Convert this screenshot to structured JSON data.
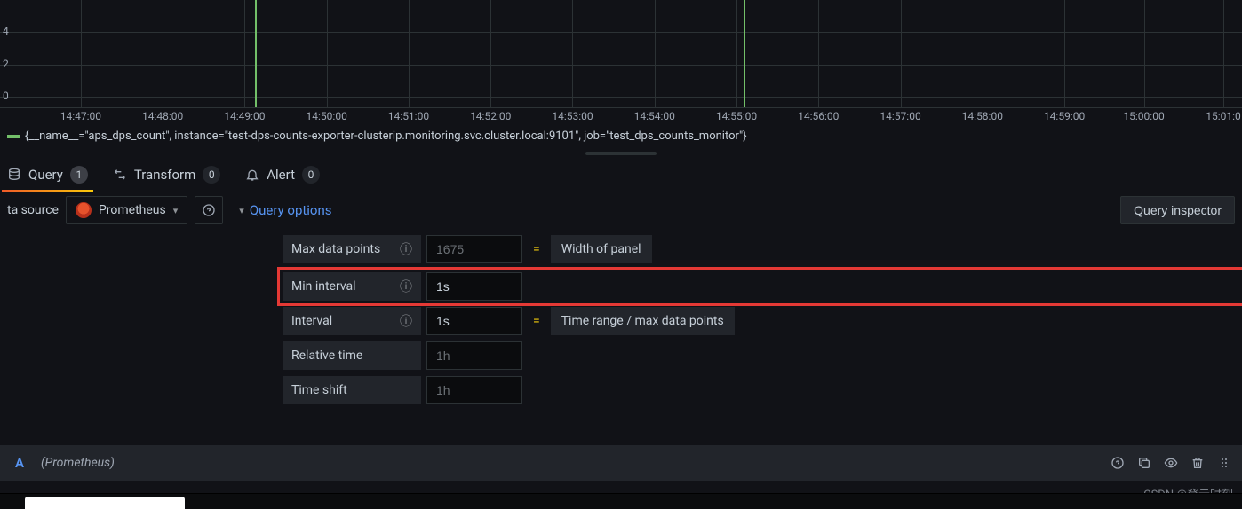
{
  "chart": {
    "type": "line",
    "series_color": "#73bf69",
    "grid_color": "#2c3235",
    "background_color": "#111217",
    "y_ticks": [
      {
        "value": 0,
        "label": "0",
        "top_pct": 90
      },
      {
        "value": 2,
        "label": "2",
        "top_pct": 60
      },
      {
        "value": 4,
        "label": "4",
        "top_pct": 30
      }
    ],
    "x_ticks": [
      {
        "label": "14:47:00",
        "left_pct": 6.5
      },
      {
        "label": "14:48:00",
        "left_pct": 13.1
      },
      {
        "label": "14:49:00",
        "left_pct": 19.7
      },
      {
        "label": "14:50:00",
        "left_pct": 26.3
      },
      {
        "label": "14:51:00",
        "left_pct": 32.9
      },
      {
        "label": "14:52:00",
        "left_pct": 39.5
      },
      {
        "label": "14:53:00",
        "left_pct": 46.1
      },
      {
        "label": "14:54:00",
        "left_pct": 52.7
      },
      {
        "label": "14:55:00",
        "left_pct": 59.3
      },
      {
        "label": "14:56:00",
        "left_pct": 65.9
      },
      {
        "label": "14:57:00",
        "left_pct": 72.5
      },
      {
        "label": "14:58:00",
        "left_pct": 79.1
      },
      {
        "label": "14:59:00",
        "left_pct": 85.7
      },
      {
        "label": "15:00:00",
        "left_pct": 92.1
      },
      {
        "label": "15:01:0",
        "left_pct": 98.5
      }
    ],
    "spikes": [
      {
        "left_pct": 20.5,
        "height_pct": 100
      },
      {
        "left_pct": 59.9,
        "height_pct": 100
      }
    ],
    "legend_label": "{__name__=\"aps_dps_count\", instance=\"test-dps-counts-exporter-clusterip.monitoring.svc.cluster.local:9101\", job=\"test_dps_counts_monitor\"}"
  },
  "tabs": {
    "query": {
      "label": "Query",
      "count": "1"
    },
    "transform": {
      "label": "Transform",
      "count": "0"
    },
    "alert": {
      "label": "Alert",
      "count": "0"
    }
  },
  "datasource": {
    "label": "ta source",
    "selected": "Prometheus"
  },
  "query_options": {
    "toggle_label": "Query options",
    "inspector_label": "Query inspector",
    "rows": {
      "max_data_points": {
        "label": "Max data points",
        "placeholder": "1675",
        "value": "",
        "desc": "Width of panel"
      },
      "min_interval": {
        "label": "Min interval",
        "placeholder": "",
        "value": "1s"
      },
      "interval": {
        "label": "Interval",
        "value": "1s",
        "desc": "Time range / max data points"
      },
      "relative_time": {
        "label": "Relative time",
        "placeholder": "1h",
        "value": ""
      },
      "time_shift": {
        "label": "Time shift",
        "placeholder": "1h",
        "value": ""
      }
    }
  },
  "query_row": {
    "letter": "A",
    "name": "(Prometheus)"
  },
  "watermark": "CSDN @登云时刻",
  "colors": {
    "accent_blue": "#5794f2",
    "accent_orange": "#f05a28",
    "warn_yellow": "#f2cc0c",
    "highlight_red": "#e53935"
  }
}
